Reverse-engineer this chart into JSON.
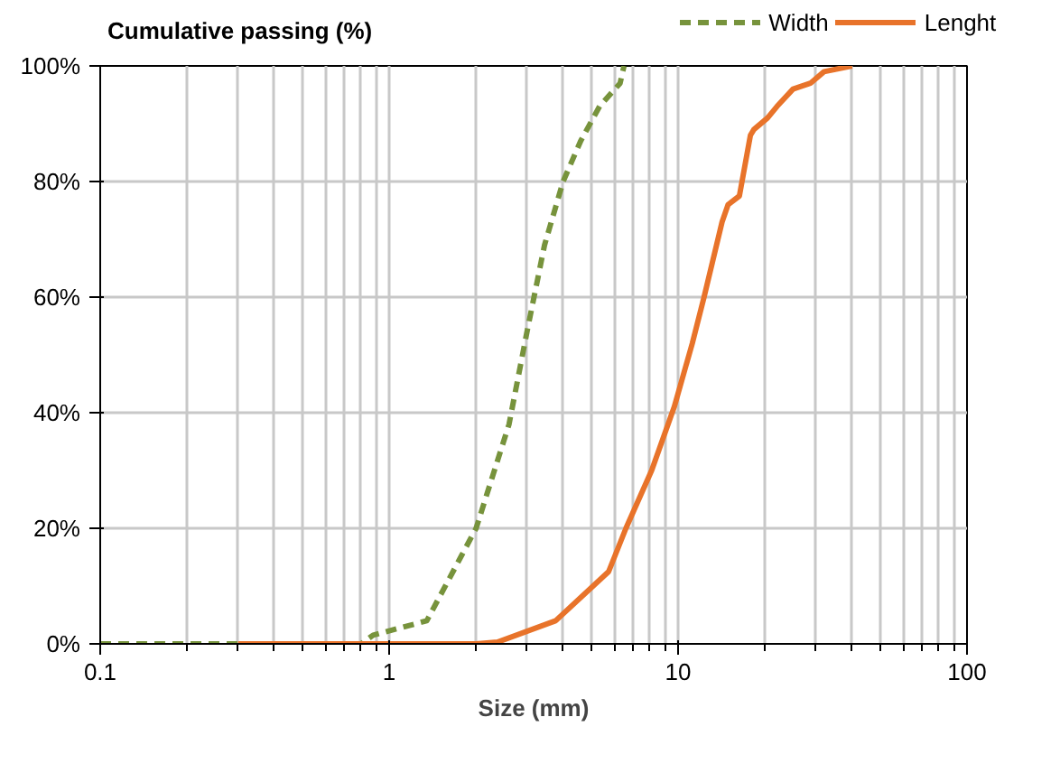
{
  "chart_data": {
    "type": "line",
    "ylabel": "Cumulative passing (%)",
    "xlabel": "Size (mm)",
    "log": "x",
    "grid": true,
    "legend": "top right",
    "marker": "none",
    "xlim": [
      0.1,
      100
    ],
    "xticks": [
      0.1,
      {
        "value": 0.2,
        "label": null
      },
      {
        "value": 0.3,
        "label": null
      },
      {
        "value": 0.4,
        "label": null
      },
      {
        "value": 0.5,
        "label": null
      },
      {
        "value": 0.6,
        "label": null
      },
      {
        "value": 0.7,
        "label": null
      },
      {
        "value": 0.8,
        "label": null
      },
      {
        "value": 0.9,
        "label": null
      },
      1,
      {
        "value": 2,
        "label": null
      },
      {
        "value": 3,
        "label": null
      },
      {
        "value": 4,
        "label": null
      },
      {
        "value": 5,
        "label": null
      },
      {
        "value": 6,
        "label": null
      },
      {
        "value": 7,
        "label": null
      },
      {
        "value": 8,
        "label": null
      },
      {
        "value": 9,
        "label": null
      },
      10,
      {
        "value": 20,
        "label": null
      },
      {
        "value": 30,
        "label": null
      },
      {
        "value": 40,
        "label": null
      },
      {
        "value": 50,
        "label": null
      },
      {
        "value": 60,
        "label": null
      },
      {
        "value": 70,
        "label": null
      },
      {
        "value": 80,
        "label": null
      },
      {
        "value": 90,
        "label": null
      },
      100
    ],
    "ylim": [
      0,
      100
    ],
    "yticks": [
      {
        "value": 0,
        "label": "0%"
      },
      {
        "value": 20,
        "label": "20%"
      },
      {
        "value": 40,
        "label": "40%"
      },
      {
        "value": 60,
        "label": "60%"
      },
      {
        "value": 80,
        "label": "80%"
      },
      {
        "value": 100,
        "label": "100%"
      }
    ],
    "series": [
      {
        "name": "Width",
        "color": "#77933c",
        "line_style": "dashed",
        "x": [
          0.1,
          0.5,
          0.8,
          0.88,
          1.35,
          2.0,
          2.6,
          3.0,
          3.45,
          4.0,
          4.6,
          5.35,
          6.3,
          6.5
        ],
        "values": [
          0,
          0,
          0,
          1.5,
          4,
          20,
          38,
          54,
          69,
          80,
          87,
          93,
          97,
          100
        ]
      },
      {
        "name": "Lenght",
        "color": "#e8732a",
        "line_style": "solid",
        "x": [
          0.3,
          1.0,
          2.0,
          2.37,
          3.77,
          5.75,
          6.6,
          8.1,
          9.7,
          11.2,
          12.3,
          14.2,
          14.9,
          16.3,
          17.8,
          18.3,
          20.4,
          22,
          25,
          28.7,
          32,
          40
        ],
        "values": [
          0,
          0,
          0,
          0.3,
          4,
          12.5,
          20,
          30,
          41,
          52,
          60,
          73,
          76,
          77.5,
          88,
          89,
          91,
          93,
          96,
          97,
          99,
          100
        ]
      }
    ]
  }
}
